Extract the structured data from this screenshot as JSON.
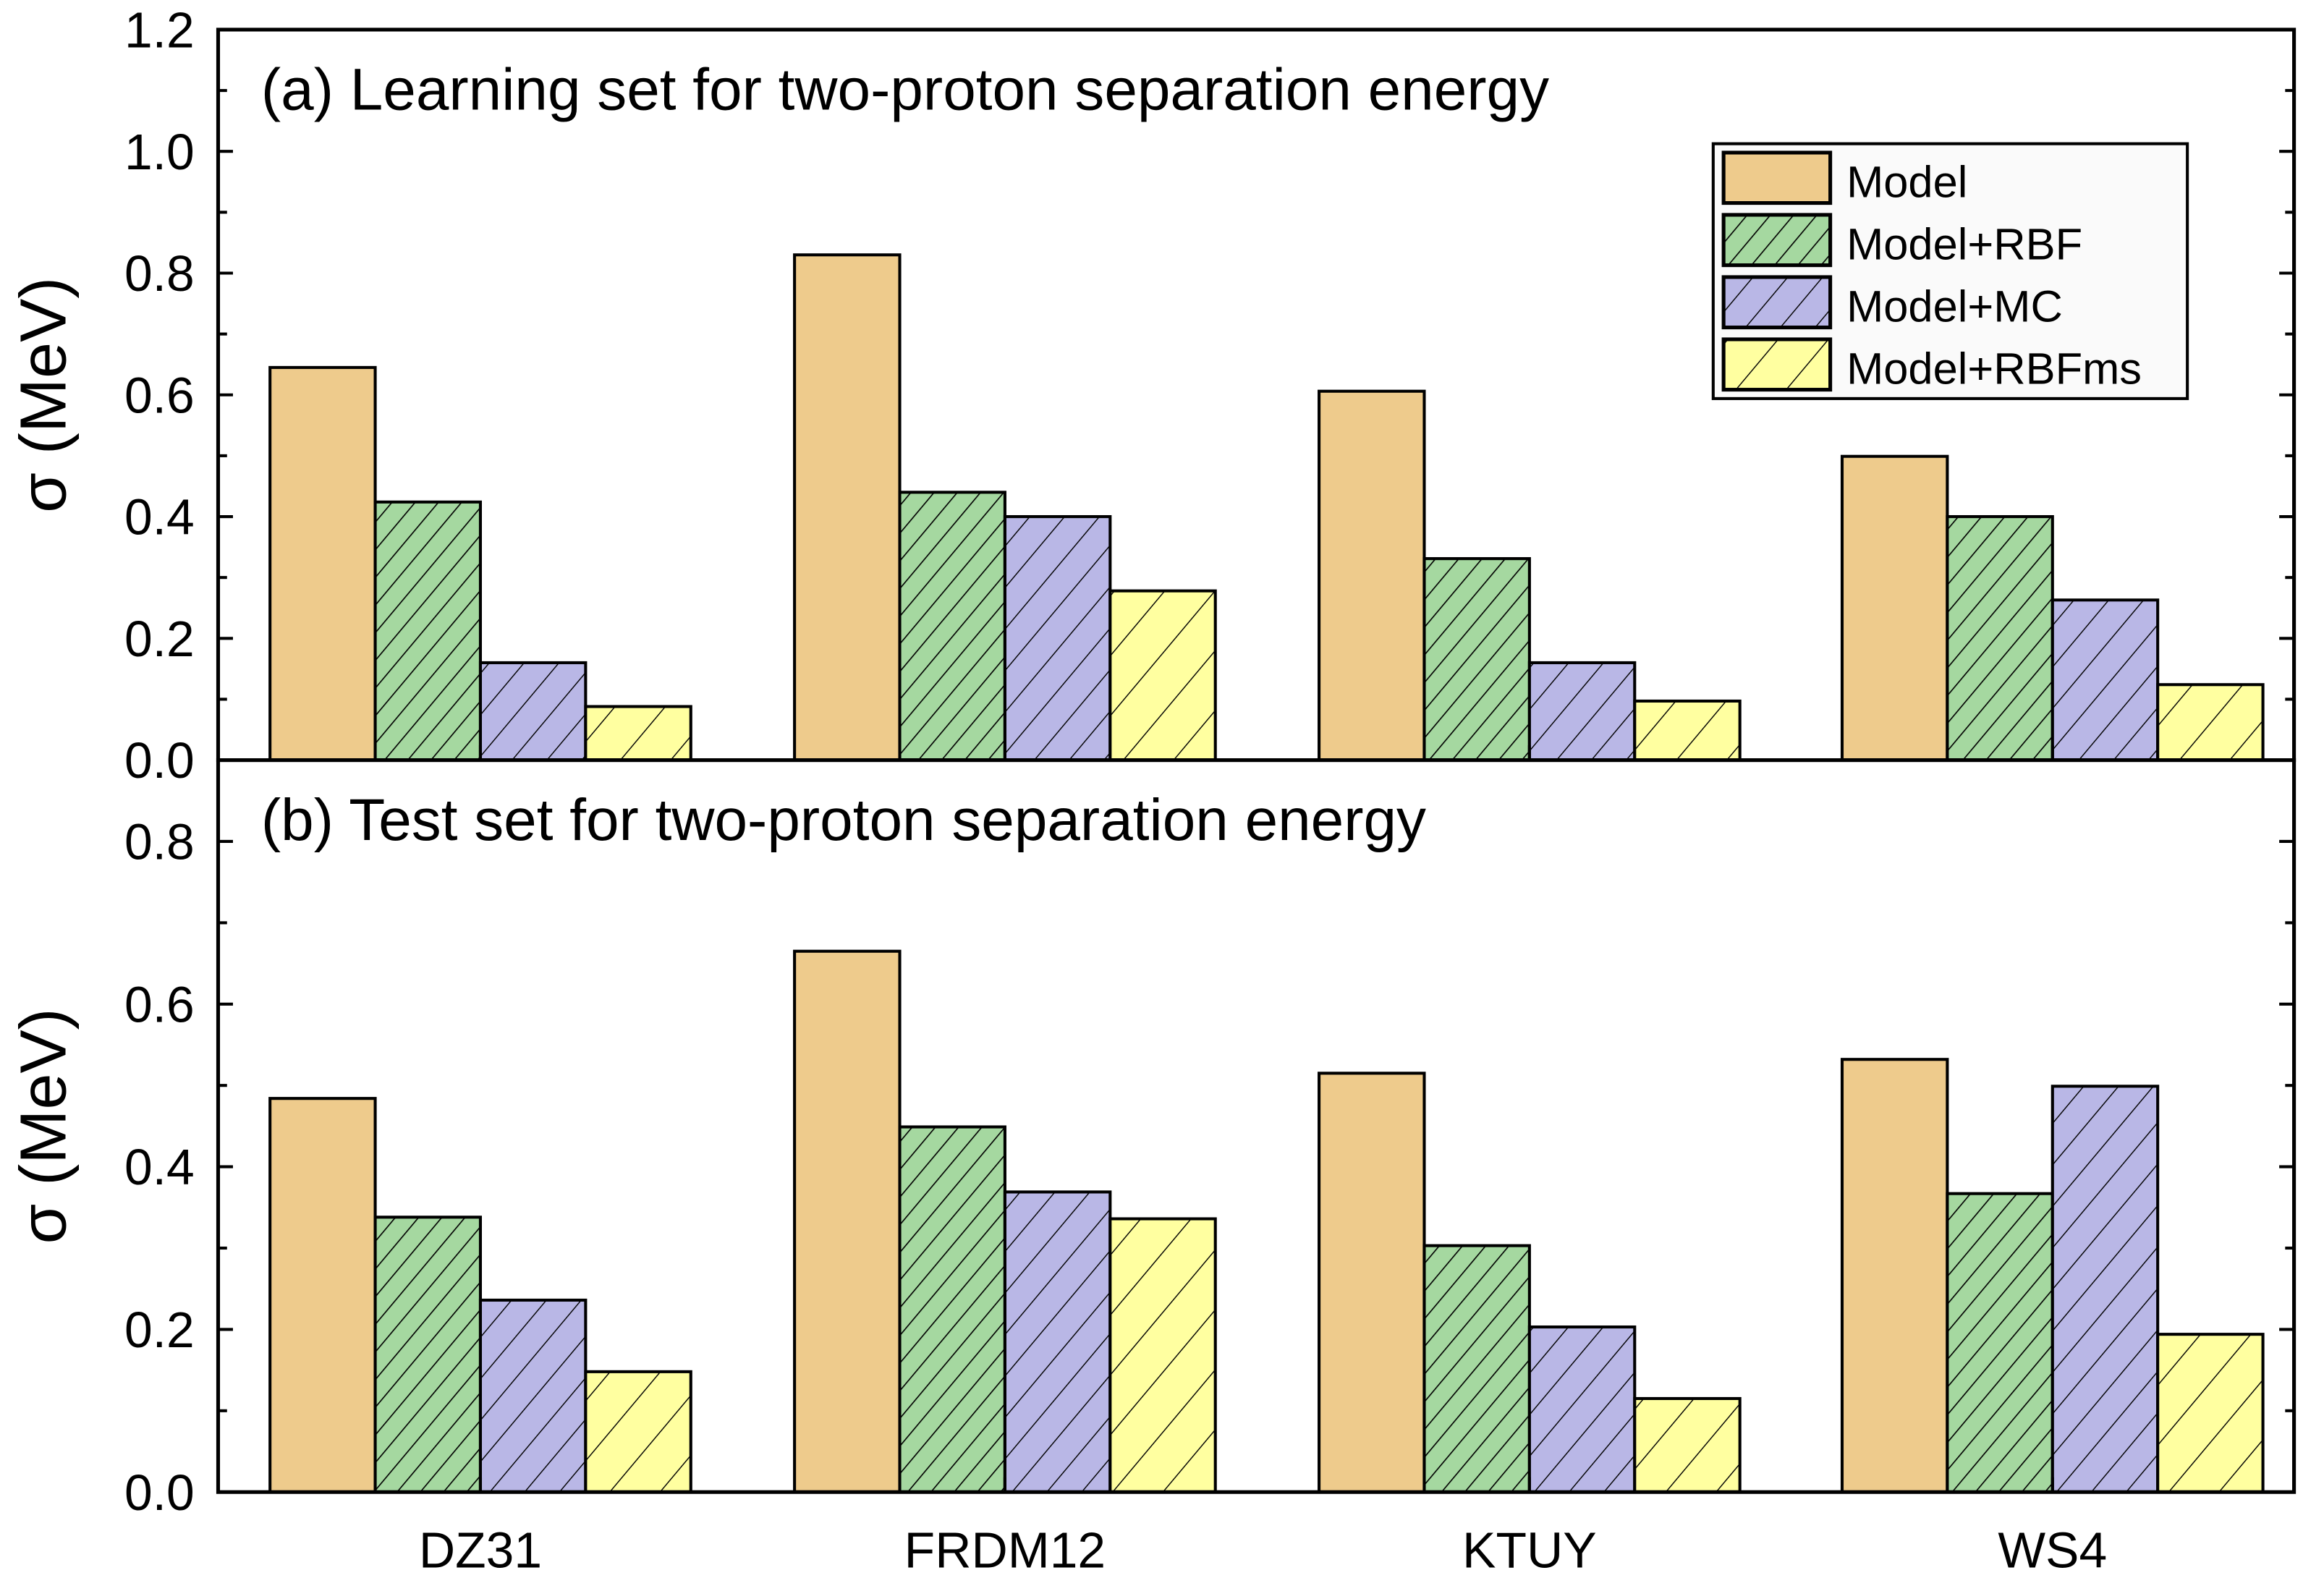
{
  "chart_data": [
    {
      "type": "bar",
      "title": "(a) Learning set for two-proton separation energy",
      "xlabel": "",
      "ylabel": "σ (MeV)",
      "ylim": [
        0,
        1.2
      ],
      "yticks": [
        "0.0",
        "0.2",
        "0.4",
        "0.6",
        "0.8",
        "1.0",
        "1.2"
      ],
      "categories": [
        "DZ31",
        "FRDM12",
        "KTUY",
        "WS4"
      ],
      "series": [
        {
          "name": "Model",
          "values": [
            0.645,
            0.83,
            0.606,
            0.499
          ]
        },
        {
          "name": "Model+RBF",
          "values": [
            0.424,
            0.44,
            0.331,
            0.4
          ]
        },
        {
          "name": "Model+MC",
          "values": [
            0.16,
            0.4,
            0.16,
            0.263
          ]
        },
        {
          "name": "Model+RBFms",
          "values": [
            0.088,
            0.278,
            0.097,
            0.124
          ]
        }
      ],
      "legend": "top-right",
      "grid": false
    },
    {
      "type": "bar",
      "title": "(b) Test set for two-proton separation energy",
      "xlabel": "",
      "ylabel": "σ (MeV)",
      "ylim": [
        0,
        0.9
      ],
      "yticks": [
        "0.0",
        "0.2",
        "0.4",
        "0.6",
        "0.8"
      ],
      "categories": [
        "DZ31",
        "FRDM12",
        "KTUY",
        "WS4"
      ],
      "series": [
        {
          "name": "Model",
          "values": [
            0.484,
            0.665,
            0.515,
            0.532
          ]
        },
        {
          "name": "Model+RBF",
          "values": [
            0.338,
            0.449,
            0.303,
            0.367
          ]
        },
        {
          "name": "Model+MC",
          "values": [
            0.236,
            0.369,
            0.203,
            0.499
          ]
        },
        {
          "name": "Model+RBFms",
          "values": [
            0.148,
            0.336,
            0.115,
            0.194
          ]
        }
      ],
      "grid": false
    }
  ],
  "colors": {
    "Model": "#EECB8C",
    "Model+RBF": "#A5D8A0",
    "Model+MC": "#B9B7E6",
    "Model+RBFms": "#FFFFA0"
  },
  "hatch": {
    "Model": "none",
    "Model+RBF": "dense-diagonal",
    "Model+MC": "medium-diagonal",
    "Model+RBFms": "sparse-diagonal"
  }
}
